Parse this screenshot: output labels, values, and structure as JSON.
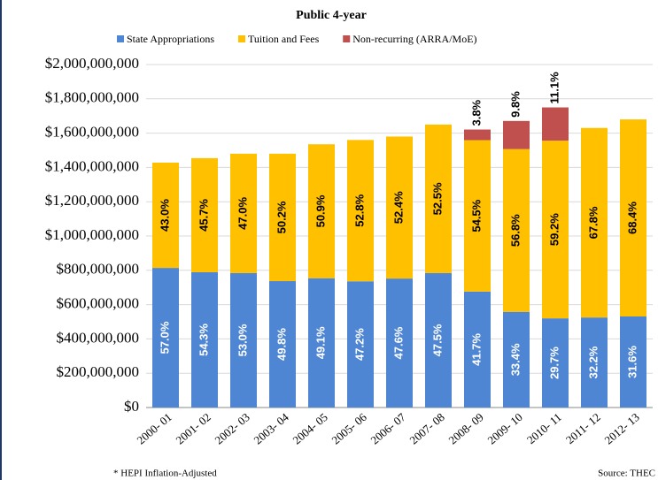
{
  "chart_data": {
    "type": "stacked-bar",
    "title": "Public 4-year",
    "categories": [
      "2000- 01",
      "2001- 02",
      "2002- 03",
      "2003- 04",
      "2004- 05",
      "2005- 06",
      "2006- 07",
      "2007- 08",
      "2008- 09",
      "2009- 10",
      "2010- 11",
      "2011- 12",
      "2012- 13"
    ],
    "series": [
      {
        "name": "State Appropriations",
        "color": "#4f86d4",
        "label_color": "#ffffff",
        "values": [
          814000000,
          789000000,
          784000000,
          737000000,
          754000000,
          736000000,
          752000000,
          784000000,
          676000000,
          558000000,
          520000000,
          525000000,
          531000000
        ],
        "segment_labels": [
          "57.0%",
          "54.3%",
          "53.0%",
          "49.8%",
          "49.1%",
          "47.2%",
          "47.6%",
          "47.5%",
          "41.7%",
          "33.4%",
          "29.7%",
          "32.2%",
          "31.6%"
        ]
      },
      {
        "name": "Tuition and Fees",
        "color": "#ffc000",
        "label_color": "#000000",
        "values": [
          614000000,
          665000000,
          696000000,
          743000000,
          781000000,
          824000000,
          828000000,
          866000000,
          883000000,
          949000000,
          1036000000,
          1105000000,
          1149000000
        ],
        "segment_labels": [
          "43.0%",
          "45.7%",
          "47.0%",
          "50.2%",
          "50.9%",
          "52.8%",
          "52.4%",
          "52.5%",
          "54.5%",
          "56.8%",
          "59.2%",
          "67.8%",
          "68.4%"
        ]
      },
      {
        "name": "Non-recurring (ARRA/MoE)",
        "color": "#c0504d",
        "label_color": "#000000",
        "label_outside": true,
        "values": [
          0,
          0,
          0,
          0,
          0,
          0,
          0,
          0,
          62000000,
          164000000,
          194000000,
          0,
          0
        ],
        "segment_labels": [
          null,
          null,
          null,
          null,
          null,
          null,
          null,
          null,
          "3.8%",
          "9.8%",
          "11.1%",
          null,
          null
        ]
      }
    ],
    "ylim": [
      0,
      2000000000
    ],
    "yticks": [
      {
        "value": 0,
        "label": "$0"
      },
      {
        "value": 200000000,
        "label": "$200,000,000"
      },
      {
        "value": 400000000,
        "label": "$400,000,000"
      },
      {
        "value": 600000000,
        "label": "$600,000,000"
      },
      {
        "value": 800000000,
        "label": "$800,000,000"
      },
      {
        "value": 1000000000,
        "label": "$1,000,000,000"
      },
      {
        "value": 1200000000,
        "label": "$1,200,000,000"
      },
      {
        "value": 1400000000,
        "label": "$1,400,000,000"
      },
      {
        "value": 1600000000,
        "label": "$1,600,000,000"
      },
      {
        "value": 1800000000,
        "label": "$1,800,000,000"
      },
      {
        "value": 2000000000,
        "label": "$2,000,000,000"
      }
    ],
    "grid": true,
    "legend": "top",
    "footnote": "* HEPI Inflation-Adjusted",
    "source": "Source: THEC"
  }
}
